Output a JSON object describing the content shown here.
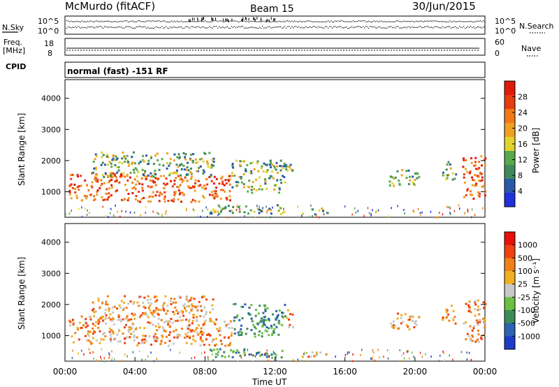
{
  "header": {
    "station": "McMurdo (fitACF)",
    "beam": "Beam 15",
    "date": "30/Jun/2015"
  },
  "side_labels": {
    "nsky": "N.Sky",
    "freq_line1": "Freq.",
    "freq_line2": "[MHz]",
    "cpid": "CPID",
    "nsearch": "N.Search",
    "nave": "Nave"
  },
  "top_strip": {
    "left_ticks": [
      "10^5",
      "10^0"
    ],
    "right_ticks": [
      "10^5",
      "10^0"
    ]
  },
  "freq_strip": {
    "left_ticks": [
      "18",
      "8"
    ],
    "right_ticks": [
      "60",
      "0"
    ]
  },
  "cpid_text": "normal (fast) -151 RF",
  "chart_data": [
    {
      "type": "heatmap",
      "panel": "power",
      "ylabel": "Slant Range [km]",
      "yticks": [
        1000,
        2000,
        3000,
        4000
      ],
      "ylim": [
        180,
        4600
      ],
      "xlabel": "Time UT",
      "xticks": [
        "00:00",
        "04:00",
        "08:00",
        "12:00",
        "16:00",
        "20:00",
        "00:00"
      ],
      "colorbar_label": "Power [dB]",
      "colorbar_ticks": [
        "4",
        "8",
        "12",
        "16",
        "20",
        "24",
        "28"
      ],
      "colorbar_colors": [
        "#1f2fdc",
        "#2a59a8",
        "#3f8a5c",
        "#5aa84a",
        "#e2d22c",
        "#f0a020",
        "#f07818",
        "#e83c10",
        "#e01a0a"
      ],
      "colorbar_ticks_fixed": true
    },
    {
      "type": "heatmap",
      "panel": "velocity",
      "ylabel": "Slant Range [km]",
      "yticks": [
        1000,
        2000,
        3000,
        4000
      ],
      "ylim": [
        180,
        4600
      ],
      "xlabel": "Time UT",
      "xticks": [
        "00:00",
        "04:00",
        "08:00",
        "12:00",
        "16:00",
        "20:00",
        "00:00"
      ],
      "colorbar_label": "Velocity [m s⁻¹]",
      "colorbar_ticks": [
        "1000",
        "500",
        "100",
        "25",
        "-25",
        "-100",
        "-500",
        "-1000"
      ],
      "colorbar_colors": [
        "#1c3cc8",
        "#2e62b4",
        "#3c8c5a",
        "#6ac040",
        "#c8c8c8",
        "#f0b020",
        "#f08018",
        "#f04010",
        "#e81008"
      ]
    }
  ],
  "xaxis": {
    "label": "Time UT",
    "ticks": [
      "00:00",
      "04:00",
      "08:00",
      "12:00",
      "16:00",
      "20:00",
      "00:00"
    ]
  }
}
